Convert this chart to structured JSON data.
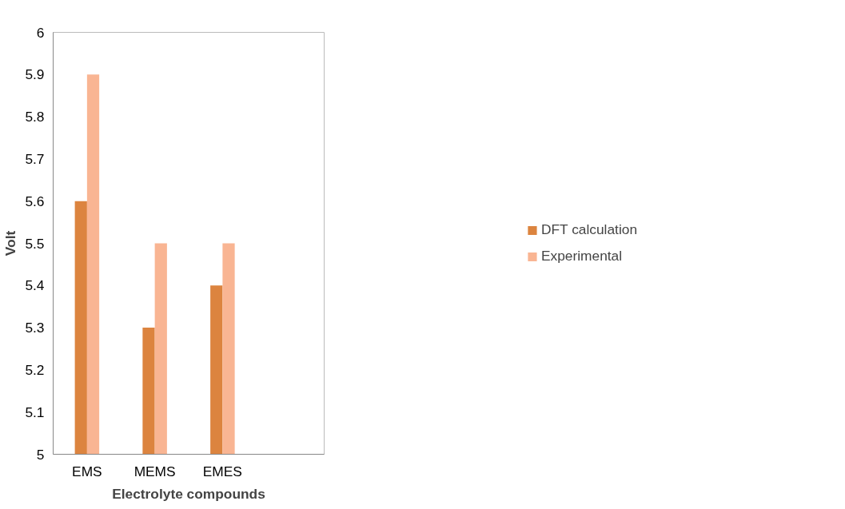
{
  "chart_data": {
    "type": "bar",
    "xlabel": "Electrolyte compounds",
    "ylabel": "Volt",
    "categories": [
      "EMS",
      "MEMS",
      "EMES",
      null
    ],
    "series": [
      {
        "name": "DFT calculation",
        "color": "#dc843f",
        "values": [
          5.6,
          5.3,
          5.4,
          null
        ]
      },
      {
        "name": "Experimental",
        "color": "#f9b593",
        "values": [
          5.9,
          5.5,
          5.5,
          null
        ]
      }
    ],
    "ylim": [
      5,
      6
    ],
    "yticks": [
      5,
      5.1,
      5.2,
      5.3,
      5.4,
      5.5,
      5.6,
      5.7,
      5.8,
      5.9,
      6
    ],
    "grid": false,
    "legend": "right"
  }
}
